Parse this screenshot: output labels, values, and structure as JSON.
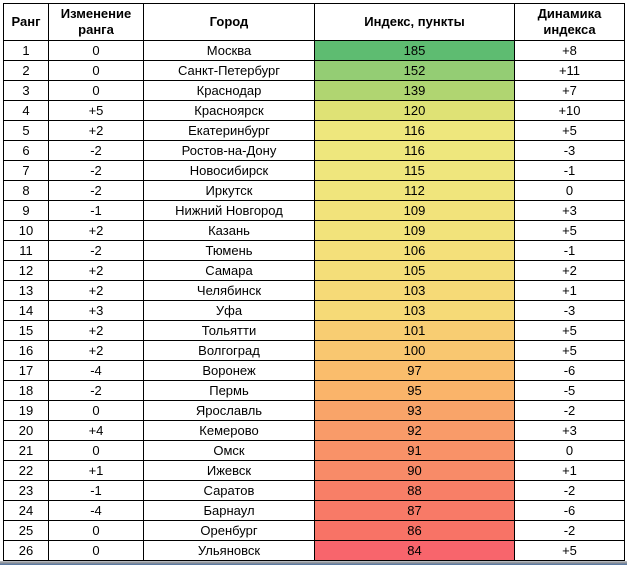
{
  "chart_data": {
    "type": "table",
    "title": "",
    "columns": [
      "Ранг",
      "Изменение ранга",
      "Город",
      "Индекс, пункты",
      "Динамика индекса"
    ],
    "conditional_formatting": {
      "applied_to_column": "Индекс, пункты",
      "scale": "red-yellow-green",
      "min_color": "#f8656c",
      "mid_color": "#f6da77",
      "max_color": "#5ebc71"
    },
    "rows": [
      {
        "rank": "1",
        "rank_change": "0",
        "city": "Москва",
        "index": "185",
        "index_color": "#5ebc71",
        "dynamics": "+8"
      },
      {
        "rank": "2",
        "rank_change": "0",
        "city": "Санкт-Петербург",
        "index": "152",
        "index_color": "#94cd74",
        "dynamics": "+11"
      },
      {
        "rank": "3",
        "rank_change": "0",
        "city": "Краснодар",
        "index": "139",
        "index_color": "#b0d571",
        "dynamics": "+7"
      },
      {
        "rank": "4",
        "rank_change": "+5",
        "city": "Красноярск",
        "index": "120",
        "index_color": "#dfe275",
        "dynamics": "+10"
      },
      {
        "rank": "5",
        "rank_change": "+2",
        "city": "Екатеринбург",
        "index": "116",
        "index_color": "#eee77d",
        "dynamics": "+5"
      },
      {
        "rank": "6",
        "rank_change": "-2",
        "city": "Ростов-на-Дону",
        "index": "116",
        "index_color": "#eee77d",
        "dynamics": "-3"
      },
      {
        "rank": "7",
        "rank_change": "-2",
        "city": "Новосибирск",
        "index": "115",
        "index_color": "#efe67d",
        "dynamics": "-1"
      },
      {
        "rank": "8",
        "rank_change": "-2",
        "city": "Иркутск",
        "index": "112",
        "index_color": "#f0e57c",
        "dynamics": "0"
      },
      {
        "rank": "9",
        "rank_change": "-1",
        "city": "Нижний Новгород",
        "index": "109",
        "index_color": "#f2e37b",
        "dynamics": "+3"
      },
      {
        "rank": "10",
        "rank_change": "+2",
        "city": "Казань",
        "index": "109",
        "index_color": "#f2e37b",
        "dynamics": "+5"
      },
      {
        "rank": "11",
        "rank_change": "-2",
        "city": "Тюмень",
        "index": "106",
        "index_color": "#f4e07a",
        "dynamics": "-1"
      },
      {
        "rank": "12",
        "rank_change": "+2",
        "city": "Самара",
        "index": "105",
        "index_color": "#f4de79",
        "dynamics": "+2"
      },
      {
        "rank": "13",
        "rank_change": "+2",
        "city": "Челябинск",
        "index": "103",
        "index_color": "#f6da77",
        "dynamics": "+1"
      },
      {
        "rank": "14",
        "rank_change": "+3",
        "city": "Уфа",
        "index": "103",
        "index_color": "#f6da77",
        "dynamics": "-3"
      },
      {
        "rank": "15",
        "rank_change": "+2",
        "city": "Тольятти",
        "index": "101",
        "index_color": "#f8cd72",
        "dynamics": "+5"
      },
      {
        "rank": "16",
        "rank_change": "+2",
        "city": "Волгоград",
        "index": "100",
        "index_color": "#f9c770",
        "dynamics": "+5"
      },
      {
        "rank": "17",
        "rank_change": "-4",
        "city": "Воронеж",
        "index": "97",
        "index_color": "#fabd6c",
        "dynamics": "-6"
      },
      {
        "rank": "18",
        "rank_change": "-2",
        "city": "Пермь",
        "index": "95",
        "index_color": "#fab46a",
        "dynamics": "-5"
      },
      {
        "rank": "19",
        "rank_change": "0",
        "city": "Ярославль",
        "index": "93",
        "index_color": "#f9a469",
        "dynamics": "-2"
      },
      {
        "rank": "20",
        "rank_change": "+4",
        "city": "Кемерово",
        "index": "92",
        "index_color": "#f99b69",
        "dynamics": "+3"
      },
      {
        "rank": "21",
        "rank_change": "0",
        "city": "Омск",
        "index": "91",
        "index_color": "#f99268",
        "dynamics": "0"
      },
      {
        "rank": "22",
        "rank_change": "+1",
        "city": "Ижевск",
        "index": "90",
        "index_color": "#f88b68",
        "dynamics": "+1"
      },
      {
        "rank": "23",
        "rank_change": "-1",
        "city": "Саратов",
        "index": "88",
        "index_color": "#f87f67",
        "dynamics": "-2"
      },
      {
        "rank": "24",
        "rank_change": "-4",
        "city": "Барнаул",
        "index": "87",
        "index_color": "#f87a67",
        "dynamics": "-6"
      },
      {
        "rank": "25",
        "rank_change": "0",
        "city": "Оренбург",
        "index": "86",
        "index_color": "#f87366",
        "dynamics": "-2"
      },
      {
        "rank": "26",
        "rank_change": "0",
        "city": "Ульяновск",
        "index": "84",
        "index_color": "#f8656c",
        "dynamics": "+5"
      }
    ]
  },
  "window": {
    "edge_top_color": "#8e9298",
    "edge_bottom_color": "#4f74a3"
  }
}
